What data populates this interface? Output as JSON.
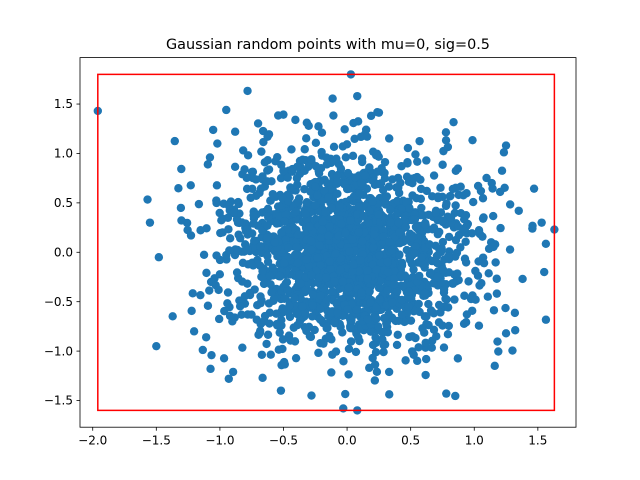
{
  "chart_data": {
    "type": "scatter",
    "title": "Gaussian random points with mu=0, sig=0.5",
    "xlabel": "",
    "ylabel": "",
    "xlim": [
      -2.1,
      1.8
    ],
    "ylim": [
      -1.77,
      1.97
    ],
    "xticks": [
      -2.0,
      -1.5,
      -1.0,
      -0.5,
      0.0,
      0.5,
      1.0,
      1.5
    ],
    "xtick_labels": [
      "−2.0",
      "−1.5",
      "−1.0",
      "−0.5",
      "0.0",
      "0.5",
      "1.0",
      "1.5"
    ],
    "yticks": [
      -1.5,
      -1.0,
      -0.5,
      0.0,
      0.5,
      1.0,
      1.5
    ],
    "ytick_labels": [
      "−1.5",
      "−1.0",
      "−0.5",
      "0.0",
      "0.5",
      "1.0",
      "1.5"
    ],
    "grid": false,
    "point_color": "#1f77b4",
    "bounding_box": {
      "color": "#ff0000",
      "xmin": -1.96,
      "xmax": 1.63,
      "ymin": -1.6,
      "ymax": 1.8
    },
    "distribution": {
      "mu": 0,
      "sigma": 0.5,
      "n": 2000
    },
    "extreme_points": [
      {
        "x": -1.96,
        "y": 1.43
      },
      {
        "x": 0.03,
        "y": 1.8
      },
      {
        "x": 1.63,
        "y": 0.23
      },
      {
        "x": 0.08,
        "y": -1.6
      },
      {
        "x": -0.03,
        "y": -1.58
      },
      {
        "x": -1.55,
        "y": 0.3
      },
      {
        "x": -1.48,
        "y": -0.05
      },
      {
        "x": -1.5,
        "y": -0.95
      },
      {
        "x": -0.93,
        "y": -1.28
      },
      {
        "x": 0.78,
        "y": -1.43
      },
      {
        "x": 1.55,
        "y": -0.2
      },
      {
        "x": 1.53,
        "y": 0.3
      },
      {
        "x": 1.38,
        "y": -0.27
      },
      {
        "x": 0.08,
        "y": 1.58
      },
      {
        "x": -0.95,
        "y": 1.44
      },
      {
        "x": 1.25,
        "y": 1.08
      },
      {
        "x": 1.25,
        "y": -0.82
      },
      {
        "x": -0.52,
        "y": -1.4
      },
      {
        "x": -0.28,
        "y": -1.45
      },
      {
        "x": -1.02,
        "y": 1.1
      },
      {
        "x": -0.88,
        "y": 1.22
      },
      {
        "x": 1.35,
        "y": 0.42
      }
    ]
  }
}
